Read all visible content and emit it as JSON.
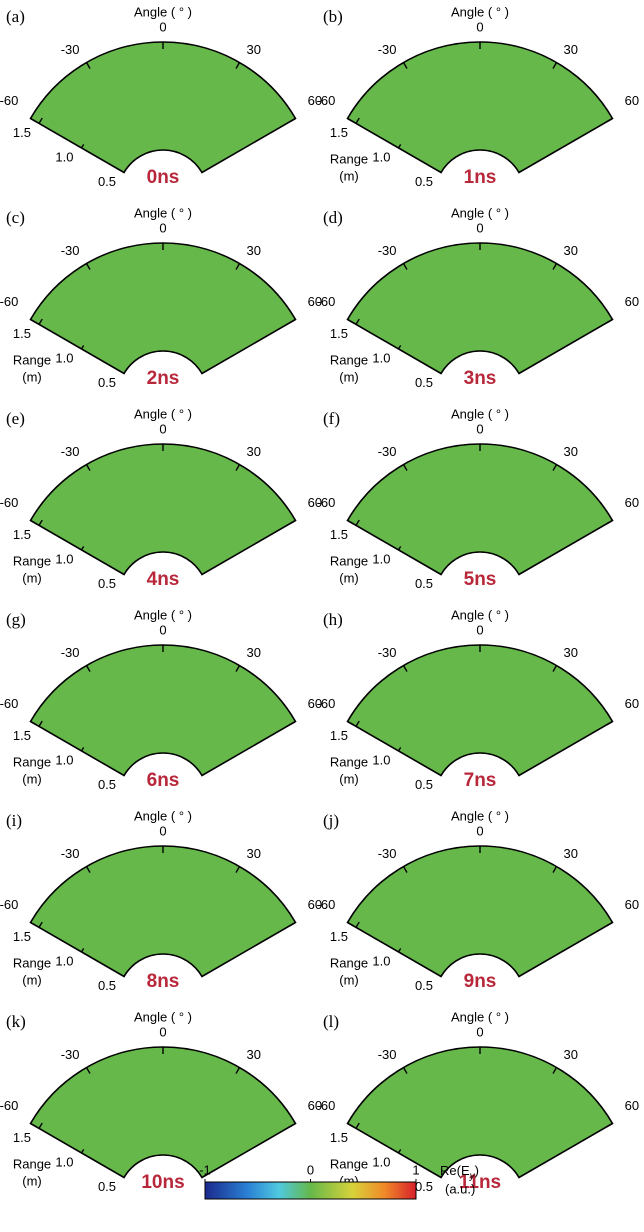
{
  "angle_title": "Angle (  °  )",
  "angle_ticks": [
    -60,
    -30,
    0,
    30,
    60
  ],
  "range_lim": [
    0.5,
    1.6
  ],
  "range_ticks": [
    1.5,
    {
      "value": 1,
      "label": "1.0"
    },
    0.5
  ],
  "panels": [
    {
      "label": "(a)",
      "time": "0ns"
    },
    {
      "label": "(b)",
      "time": "1ns",
      "range_title": "Range",
      "range_unit": "(m)"
    },
    {
      "label": "(c)",
      "time": "2ns",
      "range_title": "Range",
      "range_unit": "(m)"
    },
    {
      "label": "(d)",
      "time": "3ns",
      "range_title": "Range",
      "range_unit": "(m)"
    },
    {
      "label": "(e)",
      "time": "4ns",
      "range_title": "Range",
      "range_unit": "(m)"
    },
    {
      "label": "(f)",
      "time": "5ns",
      "range_title": "Range",
      "range_unit": "(m)"
    },
    {
      "label": "(g)",
      "time": "6ns",
      "range_title": "Range",
      "range_unit": "(m)"
    },
    {
      "label": "(h)",
      "time": "7ns",
      "range_title": "Range",
      "range_unit": "(m)"
    },
    {
      "label": "(i)",
      "time": "8ns",
      "range_title": "Range",
      "range_unit": "(m)"
    },
    {
      "label": "(j)",
      "time": "9ns",
      "range_title": "Range",
      "range_unit": "(m)"
    },
    {
      "label": "(k)",
      "time": "10ns",
      "range_title": "Range",
      "range_unit": "(m)"
    },
    {
      "label": "(l)",
      "time": "11ns",
      "range_title": "Range",
      "range_unit": "(m)"
    }
  ],
  "colorbar": {
    "lim": [
      -1,
      1
    ],
    "ticks": [
      -1,
      0,
      1
    ],
    "label": [
      "Re(E",
      "y",
      ")"
    ],
    "unit": "(a.u.)"
  }
}
